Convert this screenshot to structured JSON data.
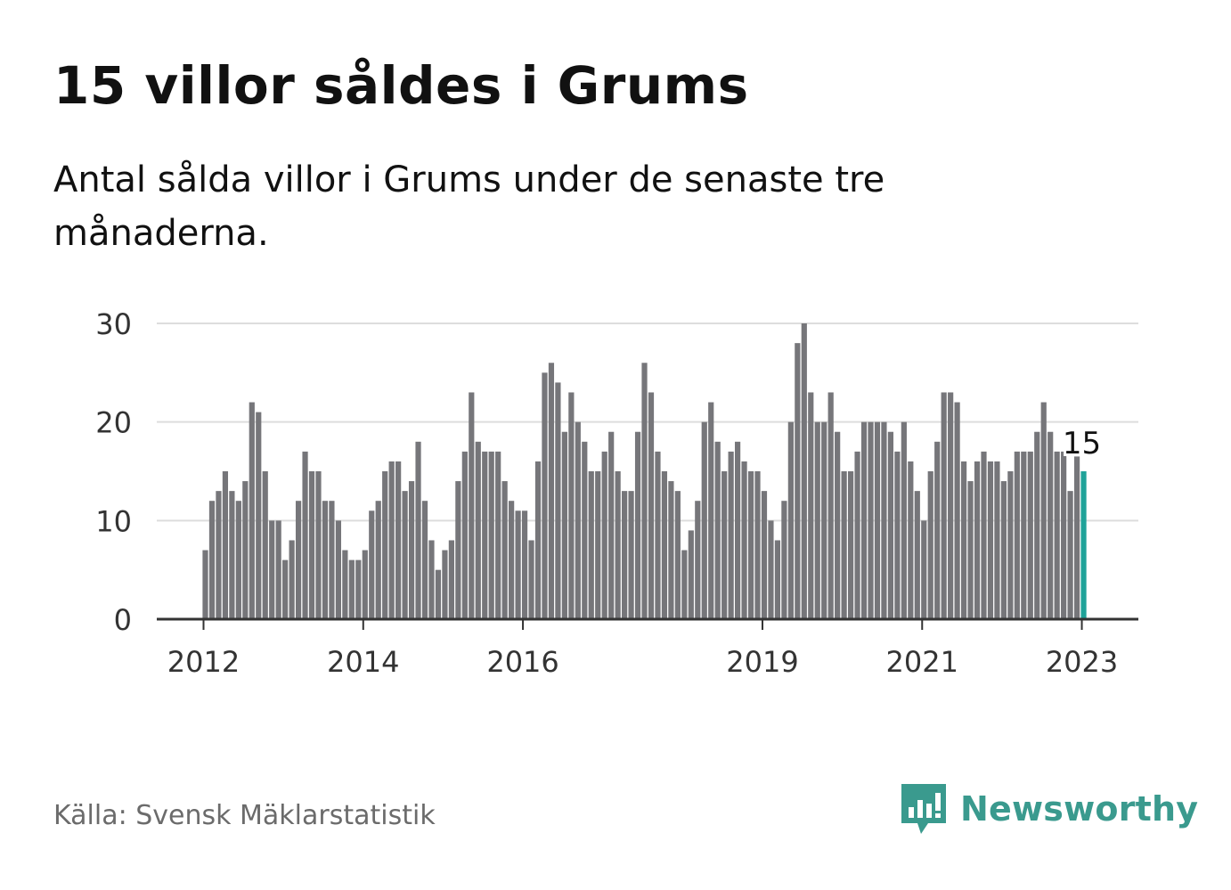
{
  "title": "15 villor såldes i Grums",
  "subtitle": "Antal sålda villor i Grums under de senaste tre månaderna.",
  "source": "Källa: Svensk Mäklarstatistik",
  "brand": {
    "name": "Newsworthy",
    "icon": "newsworthy-logo-icon",
    "color": "#3a9a8e"
  },
  "colors": {
    "bar": "#76767a",
    "highlight": "#1fa399",
    "grid": "#dddddd",
    "axis": "#333333"
  },
  "chart_data": {
    "type": "bar",
    "y_ticks": [
      0,
      10,
      20,
      30
    ],
    "ylim": [
      0,
      30
    ],
    "x_ticks": [
      {
        "label": "2012",
        "index": 0
      },
      {
        "label": "2014",
        "index": 24
      },
      {
        "label": "2016",
        "index": 48
      },
      {
        "label": "2019",
        "index": 84
      },
      {
        "label": "2021",
        "index": 108
      },
      {
        "label": "2023",
        "index": 132
      }
    ],
    "values": [
      7,
      12,
      13,
      15,
      13,
      12,
      14,
      22,
      21,
      15,
      10,
      10,
      6,
      8,
      12,
      17,
      15,
      15,
      12,
      12,
      10,
      7,
      6,
      6,
      7,
      11,
      12,
      15,
      16,
      16,
      13,
      14,
      18,
      12,
      8,
      5,
      7,
      8,
      14,
      17,
      23,
      18,
      17,
      17,
      17,
      14,
      12,
      11,
      11,
      8,
      16,
      25,
      26,
      24,
      19,
      23,
      20,
      18,
      15,
      15,
      17,
      19,
      15,
      13,
      13,
      19,
      26,
      23,
      17,
      15,
      14,
      13,
      7,
      9,
      12,
      20,
      22,
      18,
      15,
      17,
      18,
      16,
      15,
      15,
      13,
      10,
      8,
      12,
      20,
      28,
      30,
      23,
      20,
      20,
      23,
      19,
      15,
      15,
      17,
      20,
      20,
      20,
      20,
      19,
      17,
      20,
      16,
      13,
      10,
      15,
      18,
      23,
      23,
      22,
      16,
      14,
      16,
      17,
      16,
      16,
      14,
      15,
      17,
      17,
      17,
      19,
      22,
      19,
      17,
      17,
      13,
      16.5,
      15
    ],
    "highlight_index": 132,
    "highlight_label": "15"
  }
}
